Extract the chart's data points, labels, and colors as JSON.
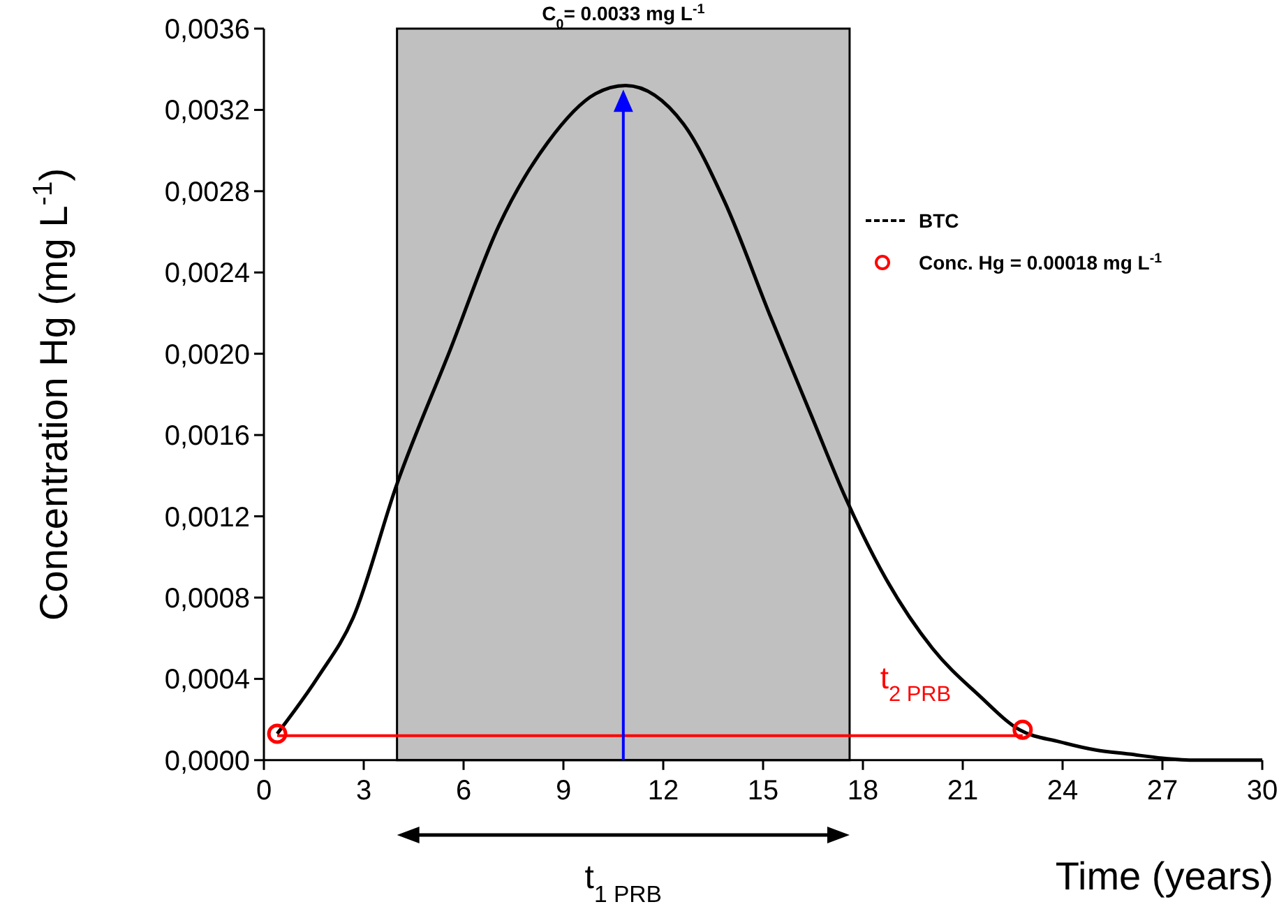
{
  "chart_data": {
    "type": "line",
    "xlabel": "Time (years)",
    "ylabel": "Concentration Hg (mg L$^{-1}$)",
    "xlim": [
      0,
      30
    ],
    "xticks": [
      0,
      3,
      6,
      9,
      12,
      15,
      18,
      21,
      24,
      27,
      30
    ],
    "ylim": [
      0,
      0.0036
    ],
    "yticks": [
      {
        "value": 0,
        "label": "0,0000"
      },
      {
        "value": 0.0004,
        "label": "0,0004"
      },
      {
        "value": 0.0008,
        "label": "0,0008"
      },
      {
        "value": 0.0012,
        "label": "0,0012"
      },
      {
        "value": 0.0016,
        "label": "0,0016"
      },
      {
        "value": 0.002,
        "label": "0,0020"
      },
      {
        "value": 0.0024,
        "label": "0,0024"
      },
      {
        "value": 0.0028,
        "label": "0,0028"
      },
      {
        "value": 0.0032,
        "label": "0,0032"
      },
      {
        "value": 0.0036,
        "label": "0,0036"
      }
    ],
    "grid": false,
    "legend": "right",
    "bands": [
      {
        "axis": "x",
        "from": 4,
        "to": 17.6,
        "color": "#c0c0c0"
      }
    ],
    "ref_lines": [
      {
        "axis": "x",
        "value": 10.8,
        "color": "#0000ff"
      }
    ],
    "series": [
      {
        "name": "BTC",
        "color": "#000000",
        "line_style": "solid",
        "x": [
          0.4,
          1.63,
          2.68,
          4,
          5.6,
          7.06,
          8.53,
          9.97,
          10.87,
          12.61,
          13.84,
          15.23,
          16.44,
          17.48,
          18.7,
          20.09,
          21.48,
          22.7,
          23.92,
          25,
          26,
          27,
          28,
          30
        ],
        "values": [
          0.00013,
          0.00041,
          0.0007,
          0.00136,
          0.00202,
          0.00263,
          0.00304,
          0.00328,
          0.00332,
          0.00313,
          0.00275,
          0.00218,
          0.0017,
          0.00129,
          0.00089,
          0.00055,
          0.00032,
          0.00015,
          9e-05,
          5e-05,
          3e-05,
          1e-05,
          0,
          0
        ]
      },
      {
        "type": "line",
        "color": "#ff0000",
        "x": [
          0.4,
          22.8
        ],
        "values": [
          0.00012,
          0.00012
        ]
      },
      {
        "name": "Conc. Hg = 0.00018 mg L$^{-1}$",
        "type": "scatter",
        "marker": "circle",
        "color": "#ff0000",
        "x": [
          0.4,
          22.8
        ],
        "values": [
          0.00013,
          0.00015
        ]
      }
    ],
    "annotations": [
      {
        "text": "C$_{0}$= 0.0033 mg L$^{-1}$",
        "x": 10.8,
        "y": 0.0033
      },
      {
        "text": "t$_{2 PRB}$",
        "x": 22.8,
        "y": 0.00012
      },
      "t$_{1 PRB}$"
    ]
  }
}
